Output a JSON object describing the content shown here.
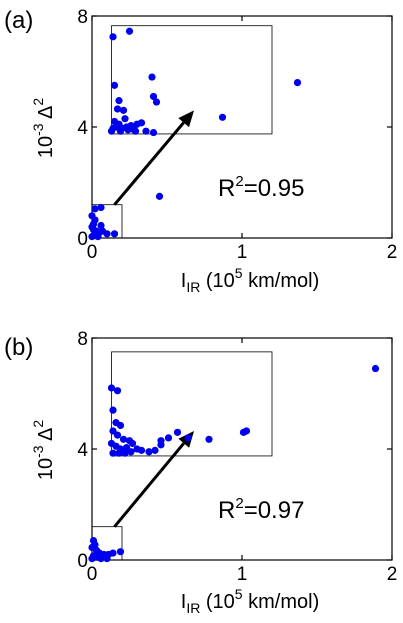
{
  "chart_data": [
    {
      "type": "scatter",
      "panel_label": "(a)",
      "ylabel": {
        "prefix": "10",
        "exp": "-3",
        "symbol": "Δ",
        "sym_exp": "2"
      },
      "xlabel": {
        "main": "I",
        "sub": "IR",
        "rest_a": " (10",
        "rest_exp": "5",
        "rest_b": " km/mol)"
      },
      "xlim": [
        0,
        2
      ],
      "ylim": [
        0,
        8
      ],
      "xticks": [
        "0",
        "1",
        "2"
      ],
      "yticks": [
        "0",
        "4",
        "8"
      ],
      "annotation": {
        "prefix": "R",
        "exp": "2",
        "value": "=0.95"
      },
      "zoom_source_box": {
        "x": [
          0,
          0.2
        ],
        "y": [
          0,
          1.2
        ]
      },
      "zoom_target_box": {
        "x": [
          0.13,
          1.2
        ],
        "y": [
          3.75,
          7.65
        ]
      },
      "arrow": {
        "from": [
          0.15,
          1.2
        ],
        "to": [
          0.68,
          4.6
        ]
      },
      "marker_color": "#0000ee",
      "points": [
        [
          0.14,
          7.25
        ],
        [
          0.25,
          7.45
        ],
        [
          0.15,
          5.5
        ],
        [
          0.4,
          5.8
        ],
        [
          0.41,
          5.1
        ],
        [
          0.43,
          4.9
        ],
        [
          0.18,
          4.95
        ],
        [
          0.17,
          4.65
        ],
        [
          0.21,
          4.6
        ],
        [
          0.22,
          4.3
        ],
        [
          0.15,
          4.2
        ],
        [
          0.16,
          4.0
        ],
        [
          0.18,
          4.1
        ],
        [
          0.2,
          3.95
        ],
        [
          0.23,
          4.0
        ],
        [
          0.26,
          4.05
        ],
        [
          0.28,
          3.9
        ],
        [
          0.3,
          4.1
        ],
        [
          0.33,
          4.15
        ],
        [
          0.36,
          3.85
        ],
        [
          0.41,
          3.8
        ],
        [
          0.13,
          3.85
        ],
        [
          0.14,
          3.95
        ],
        [
          0.19,
          3.85
        ],
        [
          0.24,
          3.9
        ],
        [
          0.29,
          3.85
        ],
        [
          0.87,
          4.35
        ],
        [
          1.37,
          5.6
        ],
        [
          0.45,
          1.5
        ],
        [
          0.02,
          1.05
        ],
        [
          0.06,
          1.1
        ],
        [
          0.0,
          0.8
        ],
        [
          0.02,
          0.65
        ],
        [
          0.0,
          0.4
        ],
        [
          0.01,
          0.3
        ],
        [
          0.03,
          0.25
        ],
        [
          0.05,
          0.2
        ],
        [
          0.07,
          0.25
        ],
        [
          0.02,
          0.1
        ],
        [
          0.04,
          0.05
        ],
        [
          0.0,
          0.05
        ],
        [
          0.1,
          0.15
        ],
        [
          0.15,
          0.15
        ],
        [
          0.01,
          0.5
        ],
        [
          0.06,
          0.45
        ]
      ]
    },
    {
      "type": "scatter",
      "panel_label": "(b)",
      "ylabel": {
        "prefix": "10",
        "exp": "-3",
        "symbol": "Δ",
        "sym_exp": "2"
      },
      "xlabel": {
        "main": "I",
        "sub": "IR",
        "rest_a": " (10",
        "rest_exp": "5",
        "rest_b": " km/mol)"
      },
      "xlim": [
        0,
        2
      ],
      "ylim": [
        0,
        8
      ],
      "xticks": [
        "0",
        "1",
        "2"
      ],
      "yticks": [
        "0",
        "4",
        "8"
      ],
      "annotation": {
        "prefix": "R",
        "exp": "2",
        "value": "=0.97"
      },
      "zoom_source_box": {
        "x": [
          0,
          0.2
        ],
        "y": [
          0,
          1.2
        ]
      },
      "zoom_target_box": {
        "x": [
          0.13,
          1.2
        ],
        "y": [
          3.75,
          7.5
        ]
      },
      "arrow": {
        "from": [
          0.15,
          1.2
        ],
        "to": [
          0.68,
          4.65
        ]
      },
      "marker_color": "#0000ee",
      "points": [
        [
          0.13,
          6.2
        ],
        [
          0.17,
          6.1
        ],
        [
          0.14,
          5.4
        ],
        [
          0.16,
          4.95
        ],
        [
          0.19,
          4.85
        ],
        [
          0.14,
          4.65
        ],
        [
          0.17,
          4.5
        ],
        [
          0.21,
          4.35
        ],
        [
          0.25,
          4.3
        ],
        [
          0.13,
          4.2
        ],
        [
          0.16,
          4.1
        ],
        [
          0.19,
          4.0
        ],
        [
          0.23,
          4.05
        ],
        [
          0.27,
          4.2
        ],
        [
          0.3,
          4.0
        ],
        [
          0.33,
          3.95
        ],
        [
          0.38,
          3.9
        ],
        [
          0.42,
          3.95
        ],
        [
          0.46,
          4.3
        ],
        [
          0.46,
          4.15
        ],
        [
          0.51,
          4.4
        ],
        [
          0.57,
          4.6
        ],
        [
          0.64,
          4.4
        ],
        [
          0.78,
          4.35
        ],
        [
          1.01,
          4.6
        ],
        [
          1.03,
          4.65
        ],
        [
          0.14,
          3.85
        ],
        [
          0.18,
          3.85
        ],
        [
          0.22,
          3.85
        ],
        [
          0.26,
          3.9
        ],
        [
          1.89,
          6.9
        ],
        [
          0.01,
          0.7
        ],
        [
          0.02,
          0.55
        ],
        [
          0.0,
          0.45
        ],
        [
          0.03,
          0.35
        ],
        [
          0.05,
          0.25
        ],
        [
          0.08,
          0.2
        ],
        [
          0.11,
          0.2
        ],
        [
          0.14,
          0.25
        ],
        [
          0.19,
          0.3
        ],
        [
          0.01,
          0.15
        ],
        [
          0.04,
          0.1
        ],
        [
          0.0,
          0.05
        ],
        [
          0.06,
          0.05
        ],
        [
          0.1,
          0.05
        ]
      ]
    }
  ]
}
